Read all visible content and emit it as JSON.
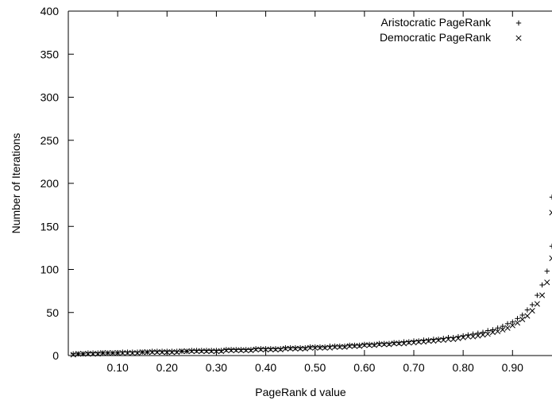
{
  "chart_data": {
    "type": "scatter",
    "xlabel": "PageRank d value",
    "ylabel": "Number of Iterations",
    "xlim": [
      0.0,
      0.98
    ],
    "ylim": [
      0,
      400
    ],
    "x_ticks": [
      0.1,
      0.2,
      0.3,
      0.4,
      0.5,
      0.6,
      0.7,
      0.8,
      0.9
    ],
    "x_tick_labels": [
      "0.10",
      "0.20",
      "0.30",
      "0.40",
      "0.50",
      "0.60",
      "0.70",
      "0.80",
      "0.90"
    ],
    "y_ticks": [
      0,
      50,
      100,
      150,
      200,
      250,
      300,
      350,
      400
    ],
    "y_tick_labels": [
      "0",
      "50",
      "100",
      "150",
      "200",
      "250",
      "300",
      "350",
      "400"
    ],
    "grid": false,
    "legend_position": "top-right",
    "series": [
      {
        "name": "Aristocratic PageRank",
        "marker": "plus",
        "color": "#000000",
        "x": [
          0.01,
          0.02,
          0.03,
          0.04,
          0.05,
          0.06,
          0.07,
          0.08,
          0.09,
          0.1,
          0.11,
          0.12,
          0.13,
          0.14,
          0.15,
          0.16,
          0.17,
          0.18,
          0.19,
          0.2,
          0.21,
          0.22,
          0.23,
          0.24,
          0.25,
          0.26,
          0.27,
          0.28,
          0.29,
          0.3,
          0.31,
          0.32,
          0.33,
          0.34,
          0.35,
          0.36,
          0.37,
          0.38,
          0.39,
          0.4,
          0.41,
          0.42,
          0.43,
          0.44,
          0.45,
          0.46,
          0.47,
          0.48,
          0.49,
          0.5,
          0.51,
          0.52,
          0.53,
          0.54,
          0.55,
          0.56,
          0.57,
          0.58,
          0.59,
          0.6,
          0.61,
          0.62,
          0.63,
          0.64,
          0.65,
          0.66,
          0.67,
          0.68,
          0.69,
          0.7,
          0.71,
          0.72,
          0.73,
          0.74,
          0.75,
          0.76,
          0.77,
          0.78,
          0.79,
          0.8,
          0.81,
          0.82,
          0.83,
          0.84,
          0.85,
          0.86,
          0.87,
          0.88,
          0.89,
          0.9,
          0.91,
          0.92,
          0.93,
          0.94,
          0.95,
          0.96,
          0.97,
          0.98
        ],
        "y": [
          2,
          2,
          2,
          3,
          3,
          3,
          3,
          3,
          3,
          3,
          4,
          4,
          4,
          4,
          4,
          4,
          5,
          5,
          5,
          5,
          5,
          5,
          5,
          5,
          6,
          6,
          6,
          6,
          6,
          6,
          6,
          7,
          7,
          7,
          7,
          7,
          7,
          8,
          8,
          8,
          8,
          8,
          8,
          9,
          9,
          9,
          9,
          9,
          10,
          10,
          10,
          10,
          11,
          11,
          11,
          11,
          12,
          12,
          12,
          13,
          13,
          13,
          14,
          14,
          14,
          15,
          15,
          16,
          16,
          17,
          17,
          18,
          18,
          19,
          19,
          20,
          21,
          21,
          22,
          23,
          24,
          25,
          26,
          27,
          29,
          30,
          32,
          34,
          37,
          39,
          43,
          47,
          53,
          59,
          70,
          82,
          98,
          127
        ]
      },
      {
        "name": "Democratic PageRank",
        "marker": "cross",
        "color": "#000000",
        "x": [
          0.01,
          0.02,
          0.03,
          0.04,
          0.05,
          0.06,
          0.07,
          0.08,
          0.09,
          0.1,
          0.11,
          0.12,
          0.13,
          0.14,
          0.15,
          0.16,
          0.17,
          0.18,
          0.19,
          0.2,
          0.21,
          0.22,
          0.23,
          0.24,
          0.25,
          0.26,
          0.27,
          0.28,
          0.29,
          0.3,
          0.31,
          0.32,
          0.33,
          0.34,
          0.35,
          0.36,
          0.37,
          0.38,
          0.39,
          0.4,
          0.41,
          0.42,
          0.43,
          0.44,
          0.45,
          0.46,
          0.47,
          0.48,
          0.49,
          0.5,
          0.51,
          0.52,
          0.53,
          0.54,
          0.55,
          0.56,
          0.57,
          0.58,
          0.59,
          0.6,
          0.61,
          0.62,
          0.63,
          0.64,
          0.65,
          0.66,
          0.67,
          0.68,
          0.69,
          0.7,
          0.71,
          0.72,
          0.73,
          0.74,
          0.75,
          0.76,
          0.77,
          0.78,
          0.79,
          0.8,
          0.81,
          0.82,
          0.83,
          0.84,
          0.85,
          0.86,
          0.87,
          0.88,
          0.89,
          0.9,
          0.91,
          0.92,
          0.93,
          0.94,
          0.95,
          0.96,
          0.97,
          0.98
        ],
        "y": [
          1,
          2,
          2,
          2,
          2,
          2,
          3,
          3,
          3,
          3,
          3,
          3,
          3,
          3,
          4,
          4,
          4,
          4,
          4,
          4,
          4,
          4,
          5,
          5,
          5,
          5,
          5,
          5,
          5,
          5,
          5,
          6,
          6,
          6,
          6,
          6,
          6,
          7,
          7,
          7,
          7,
          7,
          7,
          8,
          8,
          8,
          8,
          8,
          9,
          9,
          9,
          9,
          9,
          10,
          10,
          10,
          11,
          11,
          11,
          12,
          12,
          12,
          13,
          13,
          13,
          14,
          14,
          14,
          15,
          15,
          16,
          16,
          17,
          17,
          18,
          18,
          19,
          19,
          20,
          21,
          22,
          22,
          23,
          24,
          25,
          27,
          28,
          30,
          32,
          35,
          38,
          42,
          46,
          52,
          60,
          70,
          85,
          113
        ]
      }
    ],
    "offscale_points": [
      {
        "series": "Aristocratic PageRank",
        "x": 0.98,
        "y": 184
      },
      {
        "series": "Democratic PageRank",
        "x": 0.98,
        "y": 166
      }
    ]
  }
}
